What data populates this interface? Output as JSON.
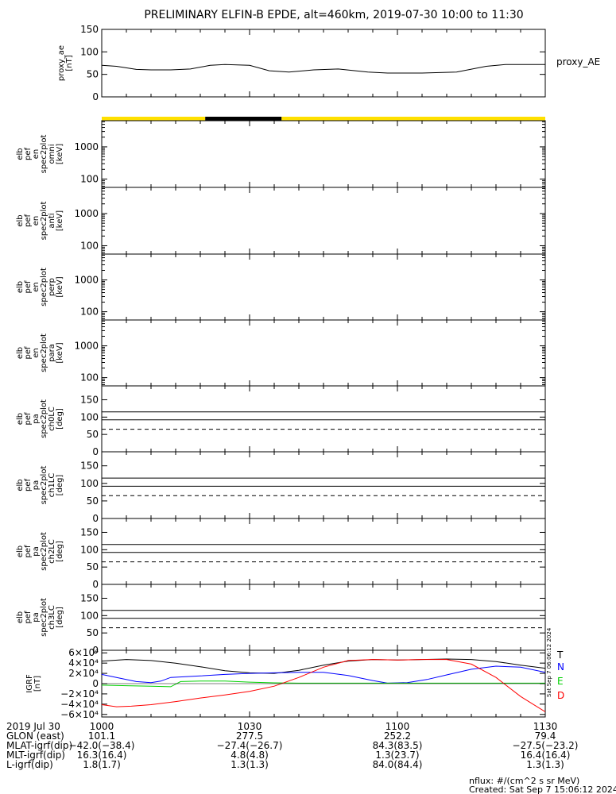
{
  "title": "PRELIMINARY ELFIN-B EPDE, alt=460km, 2019-07-30 10:00 to 11:30",
  "colors": {
    "status_bar": "#ffe000",
    "status_eclipse": "#000000",
    "T": "#000000",
    "N": "#0000ff",
    "E": "#00d000",
    "D": "#ff0000",
    "dash": "#000000"
  },
  "chart_data": [
    {
      "id": "proxy_ae",
      "type": "line",
      "ylabel_lines": [
        "proxy_ae",
        "[nT]"
      ],
      "legend": "proxy_AE",
      "ylim": [
        0,
        150
      ],
      "yticks": [
        "0",
        "50",
        "100",
        "150"
      ],
      "ytick_values": [
        0,
        50,
        100,
        150
      ],
      "series": [
        {
          "x": [
            0,
            3,
            7,
            10,
            14,
            18,
            22,
            25,
            30,
            34,
            38,
            43,
            48,
            54,
            58,
            65,
            72,
            78,
            82,
            85,
            90
          ],
          "y": [
            70,
            68,
            61,
            60,
            60,
            62,
            70,
            72,
            70,
            58,
            55,
            60,
            62,
            55,
            53,
            53,
            55,
            68,
            72,
            72,
            72
          ]
        }
      ]
    },
    {
      "id": "status_bar",
      "type": "bar",
      "segments": [
        {
          "start": 0,
          "end": 21,
          "state": "sunlit"
        },
        {
          "start": 21,
          "end": 36.5,
          "state": "eclipse"
        },
        {
          "start": 36.5,
          "end": 90,
          "state": "sunlit"
        }
      ]
    },
    {
      "id": "spec_omni",
      "type": "heatmap",
      "ylabel_lines": [
        "elb",
        "pef",
        "en",
        "spec2plot",
        "omni",
        "[keV]"
      ],
      "yticks": [
        "100",
        "1000"
      ],
      "log": true,
      "ylim": [
        55,
        6500
      ]
    },
    {
      "id": "spec_anti",
      "type": "heatmap",
      "ylabel_lines": [
        "elb",
        "pef",
        "en",
        "spec2plot",
        "anti",
        "[keV]"
      ],
      "yticks": [
        "100",
        "1000"
      ],
      "log": true,
      "ylim": [
        55,
        6500
      ]
    },
    {
      "id": "spec_perp",
      "type": "heatmap",
      "ylabel_lines": [
        "elb",
        "pef",
        "en",
        "spec2plot",
        "perp",
        "[keV]"
      ],
      "yticks": [
        "100",
        "1000"
      ],
      "log": true,
      "ylim": [
        55,
        6500
      ]
    },
    {
      "id": "spec_para",
      "type": "heatmap",
      "ylabel_lines": [
        "elb",
        "pef",
        "en",
        "spec2plot",
        "para",
        "[keV]"
      ],
      "yticks": [
        "100",
        "1000"
      ],
      "log": true,
      "ylim": [
        55,
        6500
      ]
    },
    {
      "id": "pa_ch0LC",
      "type": "line",
      "ylabel_lines": [
        "elb",
        "pef",
        "pa",
        "spec2plot",
        "ch0LC",
        "[deg]"
      ],
      "yticks": [
        "0",
        "50",
        "100",
        "150"
      ],
      "ytick_values": [
        0,
        50,
        100,
        150
      ],
      "ylim": [
        0,
        190
      ],
      "lines": [
        {
          "y": 92,
          "style": "solid"
        },
        {
          "y": 115,
          "style": "solid"
        },
        {
          "y": 65,
          "style": "dashed"
        }
      ]
    },
    {
      "id": "pa_ch1LC",
      "type": "line",
      "ylabel_lines": [
        "elb",
        "pef",
        "pa",
        "spec2plot",
        "ch1LC",
        "[deg]"
      ],
      "yticks": [
        "0",
        "50",
        "100",
        "150"
      ],
      "ytick_values": [
        0,
        50,
        100,
        150
      ],
      "ylim": [
        0,
        190
      ],
      "lines": [
        {
          "y": 92,
          "style": "solid"
        },
        {
          "y": 115,
          "style": "solid"
        },
        {
          "y": 65,
          "style": "dashed"
        }
      ]
    },
    {
      "id": "pa_ch2LC",
      "type": "line",
      "ylabel_lines": [
        "elb",
        "pef",
        "pa",
        "spec2plot",
        "ch2LC",
        "[deg]"
      ],
      "yticks": [
        "0",
        "50",
        "100",
        "150"
      ],
      "ytick_values": [
        0,
        50,
        100,
        150
      ],
      "ylim": [
        0,
        190
      ],
      "lines": [
        {
          "y": 92,
          "style": "solid"
        },
        {
          "y": 115,
          "style": "solid"
        },
        {
          "y": 65,
          "style": "dashed"
        }
      ]
    },
    {
      "id": "pa_ch3LC",
      "type": "line",
      "ylabel_lines": [
        "elb",
        "pef",
        "pa",
        "spec2plot",
        "ch3LC",
        "[deg]"
      ],
      "yticks": [
        "0",
        "50",
        "100",
        "150"
      ],
      "ytick_values": [
        0,
        50,
        100,
        150
      ],
      "ylim": [
        0,
        190
      ],
      "lines": [
        {
          "y": 92,
          "style": "solid"
        },
        {
          "y": 115,
          "style": "solid"
        },
        {
          "y": 65,
          "style": "dashed"
        }
      ]
    },
    {
      "id": "igrf",
      "type": "line",
      "ylabel_lines": [
        "IGRF",
        "[nT]"
      ],
      "ylim": [
        -65000,
        65000
      ],
      "yticks": [
        "−6×10⁴",
        "−4×10⁴",
        "−2×10⁴",
        "0",
        "2×10⁴",
        "4×10⁴",
        "6×10⁴"
      ],
      "ytick_values": [
        -60000,
        -40000,
        -20000,
        0,
        20000,
        40000,
        60000
      ],
      "legend": [
        "T",
        "N",
        "E",
        "D"
      ],
      "series": [
        {
          "name": "T",
          "color": "#000000",
          "x": [
            0,
            5,
            10,
            15,
            20,
            25,
            30,
            35,
            40,
            45,
            50,
            55,
            60,
            65,
            70,
            75,
            80,
            85,
            90
          ],
          "y": [
            44000,
            47000,
            45000,
            40000,
            33000,
            25000,
            21000,
            20000,
            26000,
            36000,
            44000,
            47000,
            46000,
            47000,
            48000,
            47000,
            43000,
            36000,
            30000
          ]
        },
        {
          "name": "N",
          "color": "#0000ff",
          "x": [
            0,
            3,
            7,
            10,
            12,
            14,
            20,
            25,
            30,
            35,
            40,
            45,
            50,
            55,
            58,
            62,
            66,
            70,
            75,
            80,
            85,
            90
          ],
          "y": [
            18000,
            12000,
            4000,
            2000,
            5000,
            12000,
            15000,
            18000,
            20000,
            21000,
            22000,
            22000,
            16000,
            6000,
            1000,
            2000,
            8000,
            17000,
            28000,
            34000,
            32000,
            22000
          ]
        },
        {
          "name": "E",
          "color": "#00d000",
          "x": [
            0,
            5,
            10,
            14,
            16,
            20,
            25,
            30,
            35,
            40,
            45,
            50,
            55,
            60,
            65,
            70,
            75,
            80,
            85,
            90
          ],
          "y": [
            -3000,
            -4000,
            -5000,
            -6000,
            4000,
            5000,
            5000,
            3000,
            1500,
            1000,
            1000,
            1000,
            1000,
            1000,
            1000,
            1000,
            1000,
            1000,
            1000,
            1000
          ]
        },
        {
          "name": "D",
          "color": "#ff0000",
          "x": [
            0,
            3,
            6,
            10,
            15,
            20,
            25,
            30,
            35,
            40,
            45,
            50,
            55,
            60,
            65,
            70,
            75,
            80,
            85,
            90
          ],
          "y": [
            -41000,
            -45000,
            -44000,
            -41000,
            -35000,
            -28000,
            -22000,
            -15000,
            -5000,
            12000,
            32000,
            45000,
            47000,
            46000,
            47000,
            47000,
            38000,
            12000,
            -25000,
            -55000
          ]
        }
      ]
    }
  ],
  "x_axis": {
    "xlim": [
      0,
      90
    ],
    "tick_positions": [
      0,
      30,
      60,
      90
    ],
    "row_labels": [
      "2019 Jul 30",
      "GLON (east)",
      "MLAT-igrf(dip)",
      "MLT-igrf(dip)",
      "L-igrf(dip)"
    ],
    "columns": [
      [
        "1000",
        "101.1",
        "−42.0(−38.4)",
        "16.3(16.4)",
        "1.8(1.7)"
      ],
      [
        "1030",
        "277.5",
        "−27.4(−26.7)",
        "4.8(4.8)",
        "1.3(1.3)"
      ],
      [
        "1100",
        "252.2",
        "84.3(83.5)",
        "1.3(23.7)",
        "84.0(84.4)"
      ],
      [
        "1130",
        "79.4",
        "−27.5(−23.2)",
        "16.4(16.4)",
        "1.3(1.3)"
      ]
    ]
  },
  "side_stamp": "Sat Sep  7 06:06:12 2024",
  "footer": {
    "units": "nflux: #/(cm^2 s sr MeV)",
    "created": "Created: Sat Sep  7 15:06:12 2024"
  }
}
